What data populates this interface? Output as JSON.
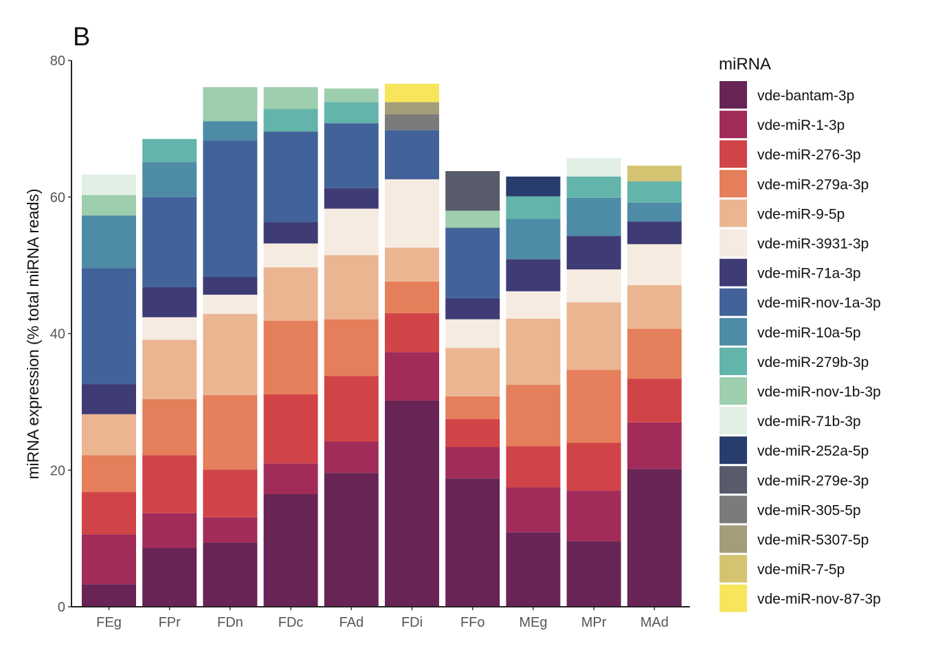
{
  "panel_label": "B",
  "chart_data": {
    "type": "bar",
    "stacked": true,
    "ylabel": "miRNA expression (% total miRNA reads)",
    "xlabel": "",
    "ylim": [
      0,
      80
    ],
    "yticks": [
      0,
      20,
      40,
      60,
      80
    ],
    "grid": false,
    "legend": {
      "title": "miRNA",
      "placement": "right"
    },
    "categories": [
      "FEg",
      "FPr",
      "FDn",
      "FDc",
      "FAd",
      "FDi",
      "FFo",
      "MEg",
      "MPr",
      "MAd"
    ],
    "series": [
      {
        "name": "vde-bantam-3p",
        "color": "#672454",
        "values": [
          3.3,
          8.6,
          9.4,
          16.5,
          19.6,
          30.2,
          18.8,
          10.9,
          9.6,
          20.2
        ]
      },
      {
        "name": "vde-miR-1-3p",
        "color": "#a12c5a",
        "values": [
          7.3,
          5.1,
          3.7,
          4.5,
          4.6,
          7.1,
          4.6,
          6.6,
          7.4,
          6.8
        ]
      },
      {
        "name": "vde-miR-276-3p",
        "color": "#d04447",
        "values": [
          6.2,
          8.5,
          7.0,
          10.1,
          9.6,
          5.7,
          4.1,
          6.0,
          7.0,
          6.4
        ]
      },
      {
        "name": "vde-miR-279a-3p",
        "color": "#e57e5a",
        "values": [
          5.4,
          8.2,
          10.9,
          10.8,
          8.3,
          4.6,
          3.3,
          9.0,
          10.7,
          7.3
        ]
      },
      {
        "name": "vde-miR-9-5p",
        "color": "#ebb592",
        "values": [
          6.0,
          8.7,
          11.9,
          7.8,
          9.4,
          5.0,
          7.1,
          9.7,
          9.9,
          6.4
        ]
      },
      {
        "name": "vde-miR-3931-3p",
        "color": "#f6ebe1",
        "values": [
          0,
          3.3,
          2.8,
          3.5,
          6.8,
          10.0,
          4.2,
          4.0,
          4.8,
          6.0
        ]
      },
      {
        "name": "vde-miR-71a-3p",
        "color": "#3f3b75",
        "values": [
          4.4,
          4.4,
          2.6,
          3.1,
          3.0,
          0,
          3.1,
          4.7,
          4.9,
          3.3
        ]
      },
      {
        "name": "vde-miR-nov-1a-3p",
        "color": "#42639a",
        "values": [
          17.0,
          13.2,
          20.0,
          13.3,
          9.5,
          7.2,
          10.3,
          0,
          0,
          0
        ]
      },
      {
        "name": "vde-miR-10a-5p",
        "color": "#4d8ba6",
        "values": [
          7.7,
          5.1,
          2.8,
          0,
          0,
          0,
          0,
          5.9,
          5.6,
          2.8
        ]
      },
      {
        "name": "vde-miR-279b-3p",
        "color": "#63b4aa",
        "values": [
          0,
          3.4,
          0,
          3.3,
          3.1,
          0,
          0,
          3.3,
          3.1,
          3.1
        ]
      },
      {
        "name": "vde-miR-nov-1b-3p",
        "color": "#9dcead",
        "values": [
          3.0,
          0,
          5.0,
          3.2,
          2.0,
          0,
          2.5,
          0,
          0,
          0
        ]
      },
      {
        "name": "vde-miR-71b-3p",
        "color": "#e2efe5",
        "values": [
          3.0,
          0,
          0,
          0,
          0,
          0,
          0,
          0,
          2.7,
          0
        ]
      },
      {
        "name": "vde-miR-252a-5p",
        "color": "#283d6b",
        "values": [
          0,
          0,
          0,
          0,
          0,
          0,
          0,
          2.9,
          0,
          0
        ]
      },
      {
        "name": "vde-miR-279e-3p",
        "color": "#575b6a",
        "values": [
          0,
          0,
          0,
          0,
          0,
          0,
          5.8,
          0,
          0,
          0
        ]
      },
      {
        "name": "vde-miR-305-5p",
        "color": "#7c7b7c",
        "values": [
          0,
          0,
          0,
          0,
          0,
          2.3,
          0,
          0,
          0,
          0
        ]
      },
      {
        "name": "vde-miR-5307-5p",
        "color": "#a59d78",
        "values": [
          0,
          0,
          0,
          0,
          0,
          1.8,
          0,
          0,
          0,
          0
        ]
      },
      {
        "name": "vde-miR-7-5p",
        "color": "#d4c371",
        "values": [
          0,
          0,
          0,
          0,
          0,
          0,
          0,
          0,
          0,
          2.3
        ]
      },
      {
        "name": "vde-miR-nov-87-3p",
        "color": "#f8e55b",
        "values": [
          0,
          0,
          0,
          0,
          0,
          2.7,
          0,
          0,
          0,
          0
        ]
      }
    ]
  }
}
